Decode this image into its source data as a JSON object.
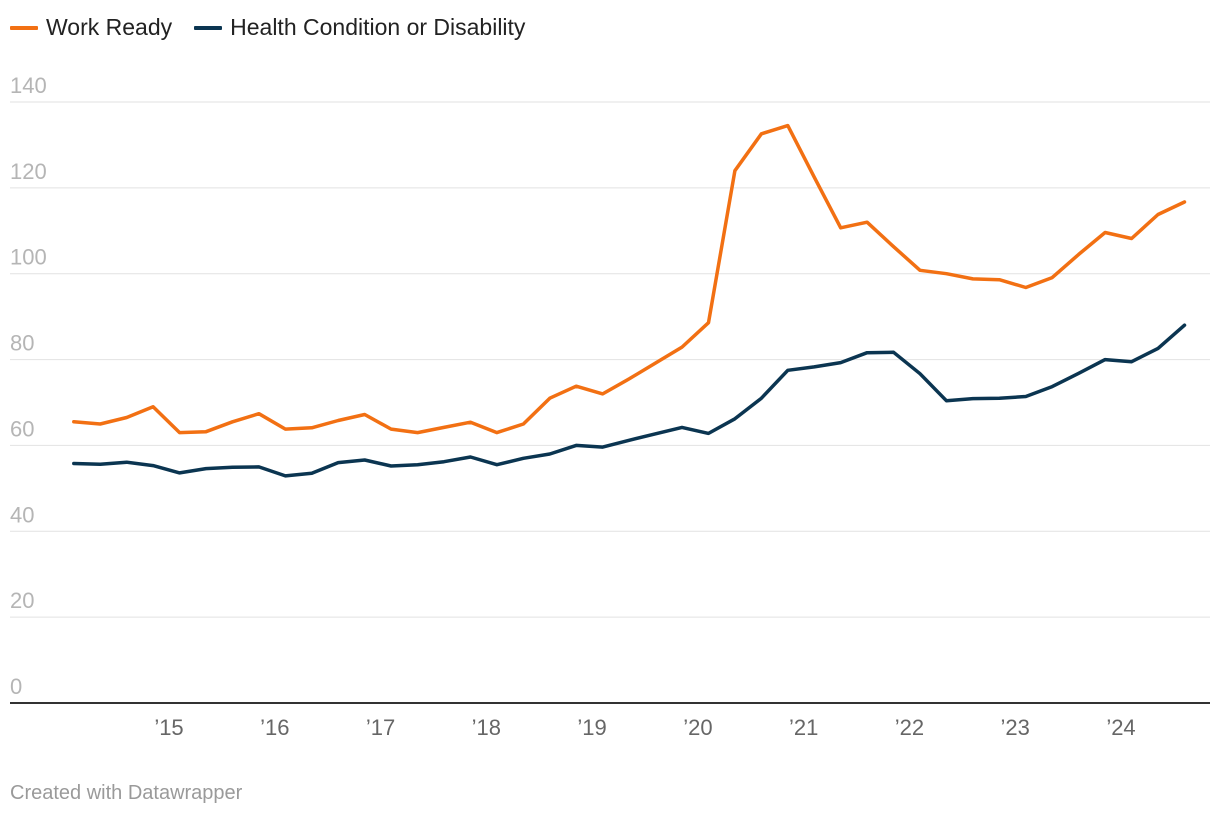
{
  "chart_data": {
    "type": "line",
    "title": "",
    "xlabel": "",
    "ylabel": "",
    "ylim": [
      0,
      140
    ],
    "yticks": [
      "0",
      "20",
      "40",
      "60",
      "80",
      "100",
      "120",
      "140"
    ],
    "xticks": [
      {
        "label": "’15",
        "x": 2015.0
      },
      {
        "label": "’16",
        "x": 2016.0
      },
      {
        "label": "’17",
        "x": 2017.0
      },
      {
        "label": "’18",
        "x": 2018.0
      },
      {
        "label": "’19",
        "x": 2019.0
      },
      {
        "label": "’20",
        "x": 2020.0
      },
      {
        "label": "’21",
        "x": 2021.0
      },
      {
        "label": "’22",
        "x": 2022.0
      },
      {
        "label": "’23",
        "x": 2023.0
      },
      {
        "label": "’24",
        "x": 2024.0
      }
    ],
    "x": [
      2014.1,
      2014.35,
      2014.6,
      2014.85,
      2015.1,
      2015.35,
      2015.6,
      2015.85,
      2016.1,
      2016.35,
      2016.6,
      2016.85,
      2017.1,
      2017.35,
      2017.6,
      2017.85,
      2018.1,
      2018.35,
      2018.6,
      2018.85,
      2019.1,
      2019.35,
      2019.6,
      2019.85,
      2020.1,
      2020.35,
      2020.6,
      2020.85,
      2021.1,
      2021.35,
      2021.6,
      2021.85,
      2022.1,
      2022.35,
      2022.6,
      2022.85,
      2023.1,
      2023.35,
      2023.6,
      2023.85,
      2024.1,
      2024.35,
      2024.6
    ],
    "series": [
      {
        "name": "Work Ready",
        "color": "#f27013",
        "values": [
          65.5,
          65.0,
          66.5,
          69.0,
          63.0,
          63.2,
          65.5,
          67.4,
          63.8,
          64.1,
          65.8,
          67.2,
          63.8,
          63.0,
          64.2,
          65.4,
          63.0,
          65.0,
          71.0,
          73.8,
          72.0,
          75.5,
          79.2,
          82.9,
          88.6,
          124.0,
          132.6,
          134.5,
          122.5,
          110.7,
          112.0,
          106.3,
          100.8,
          100.0,
          98.8,
          98.6,
          96.8,
          99.1,
          104.5,
          109.6,
          108.2,
          113.8,
          116.7
        ]
      },
      {
        "name": "Health Condition or Disability",
        "color": "#0b3551",
        "values": [
          55.8,
          55.6,
          56.1,
          55.3,
          53.6,
          54.6,
          54.9,
          55.0,
          52.9,
          53.5,
          56.0,
          56.6,
          55.2,
          55.5,
          56.2,
          57.3,
          55.5,
          57.0,
          58.0,
          60.0,
          59.6,
          61.2,
          62.7,
          64.2,
          62.8,
          66.2,
          71.0,
          77.5,
          78.3,
          79.3,
          81.6,
          81.7,
          76.7,
          70.4,
          70.9,
          71.0,
          71.4,
          73.7,
          76.8,
          80.0,
          79.5,
          82.6,
          88.0
        ]
      }
    ]
  },
  "legend": {
    "work_ready": "Work Ready",
    "health": "Health Condition or Disability"
  },
  "footer": "Created with Datawrapper"
}
